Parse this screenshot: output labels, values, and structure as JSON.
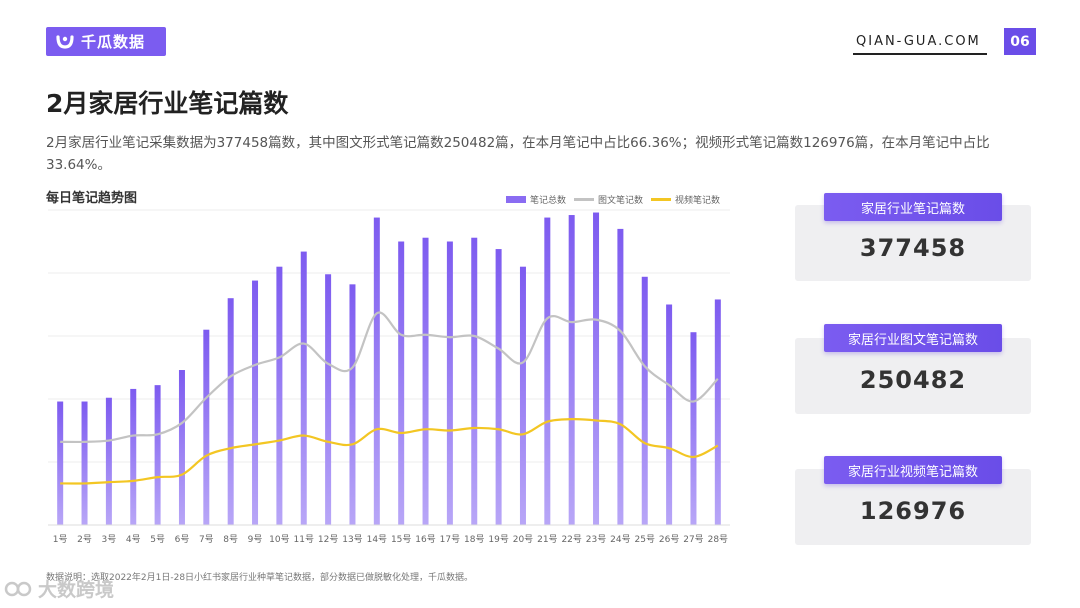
{
  "header": {
    "logo_text": "千瓜数据",
    "site": "QIAN-GUA.COM",
    "page_number": "06"
  },
  "title": "2月家居行业笔记篇数",
  "description": "2月家居行业笔记采集数据为377458篇数，其中图文形式笔记篇数250482篇，在本月笔记中占比66.36%；视频形式笔记篇数126976篇，在本月笔记中占比33.64%。",
  "chart_title": "每日笔记趋势图",
  "legend": {
    "total": "笔记总数",
    "image": "图文笔记数",
    "video": "视频笔记数"
  },
  "colors": {
    "accent": "#7b5cf0",
    "bar": "#8a6cf2",
    "image_line": "#c3c3c3",
    "video_line": "#f3c623"
  },
  "chart_data": {
    "type": "bar",
    "categories": [
      "1号",
      "2号",
      "3号",
      "4号",
      "5号",
      "6号",
      "7号",
      "8号",
      "9号",
      "10号",
      "11号",
      "12号",
      "13号",
      "14号",
      "15号",
      "16号",
      "17号",
      "18号",
      "19号",
      "20号",
      "21号",
      "22号",
      "23号",
      "24号",
      "25号",
      "26号",
      "27号",
      "28号"
    ],
    "series": [
      {
        "name": "笔记总数",
        "type": "bar",
        "values": [
          9.8,
          9.8,
          10.1,
          10.8,
          11.1,
          12.3,
          15.5,
          18.0,
          19.4,
          20.5,
          21.7,
          19.9,
          19.1,
          24.4,
          22.5,
          22.8,
          22.5,
          22.8,
          21.9,
          20.5,
          24.4,
          24.6,
          24.8,
          23.5,
          19.7,
          17.5,
          15.3,
          17.9
        ]
      },
      {
        "name": "图文笔记数",
        "type": "line",
        "values": [
          6.6,
          6.6,
          6.7,
          7.1,
          7.2,
          8.1,
          10.1,
          11.8,
          12.7,
          13.3,
          14.4,
          12.8,
          12.5,
          16.8,
          15.1,
          15.1,
          14.9,
          15.0,
          14.0,
          12.9,
          16.4,
          16.1,
          16.3,
          15.4,
          12.6,
          11.1,
          9.8,
          11.6
        ]
      },
      {
        "name": "视频笔记数",
        "type": "line",
        "values": [
          3.3,
          3.3,
          3.4,
          3.5,
          3.8,
          4.0,
          5.5,
          6.1,
          6.4,
          6.7,
          7.1,
          6.6,
          6.4,
          7.6,
          7.3,
          7.6,
          7.5,
          7.7,
          7.6,
          7.2,
          8.2,
          8.4,
          8.3,
          8.0,
          6.5,
          6.1,
          5.4,
          6.3
        ]
      }
    ],
    "ylim": [
      0,
      25
    ],
    "grid": true,
    "legend_position": "top-right"
  },
  "cards": [
    {
      "label": "家居行业笔记篇数",
      "value": "377458"
    },
    {
      "label": "家居行业图文笔记篇数",
      "value": "250482"
    },
    {
      "label": "家居行业视频笔记篇数",
      "value": "126976"
    }
  ],
  "source": "数据说明：选取2022年2月1日-28日小红书家居行业种草笔记数据，部分数据已做脱敏化处理，千瓜数据。",
  "watermark": "大数跨境"
}
